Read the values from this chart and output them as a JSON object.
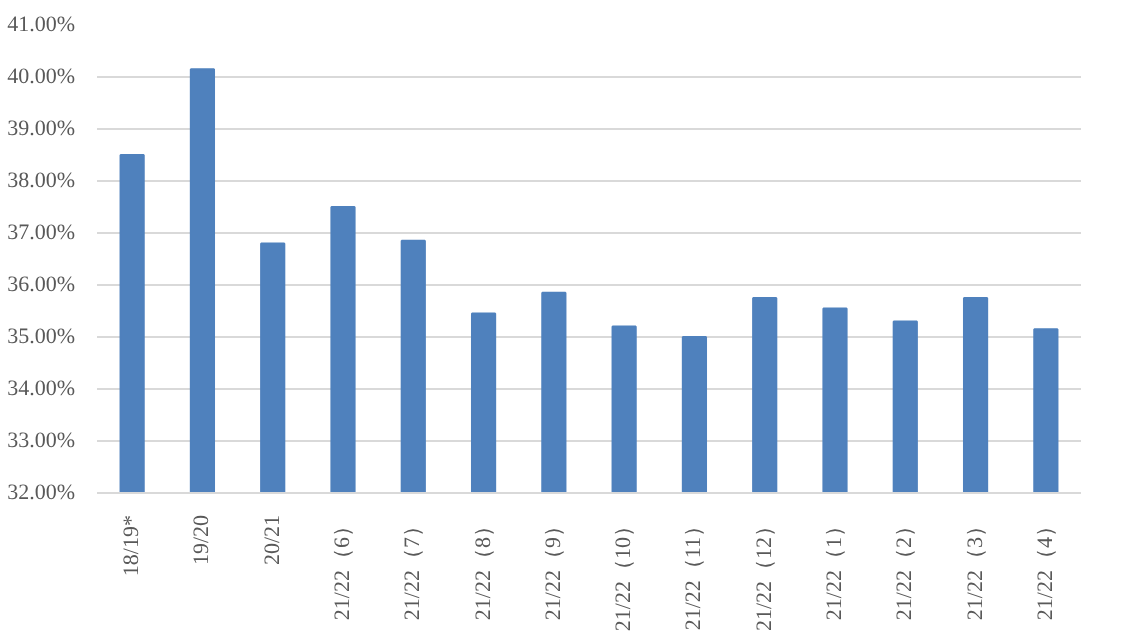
{
  "chart_data": {
    "type": "bar",
    "categories": [
      "18/19*",
      "19/20",
      "20/21",
      "21/22（6）",
      "21/22（7）",
      "21/22（8）",
      "21/22（9）",
      "21/22（10）",
      "21/22（11）",
      "21/22（12）",
      "21/22（1）",
      "21/22（2）",
      "21/22（3）",
      "21/22（4）"
    ],
    "values": [
      38.5,
      40.15,
      36.8,
      37.5,
      36.85,
      35.45,
      35.85,
      35.2,
      35.0,
      35.75,
      35.55,
      35.3,
      35.75,
      35.15
    ],
    "color": "#4f81bd",
    "ylim": [
      32,
      41
    ],
    "yticks": [
      {
        "value": 32,
        "label": "32.00%"
      },
      {
        "value": 33,
        "label": "33.00%"
      },
      {
        "value": 34,
        "label": "34.00%"
      },
      {
        "value": 35,
        "label": "35.00%"
      },
      {
        "value": 36,
        "label": "36.00%"
      },
      {
        "value": 37,
        "label": "37.00%"
      },
      {
        "value": 38,
        "label": "38.00%"
      },
      {
        "value": 39,
        "label": "39.00%"
      },
      {
        "value": 40,
        "label": "40.00%"
      },
      {
        "value": 41,
        "label": "41.00%"
      }
    ],
    "grid": "y"
  }
}
